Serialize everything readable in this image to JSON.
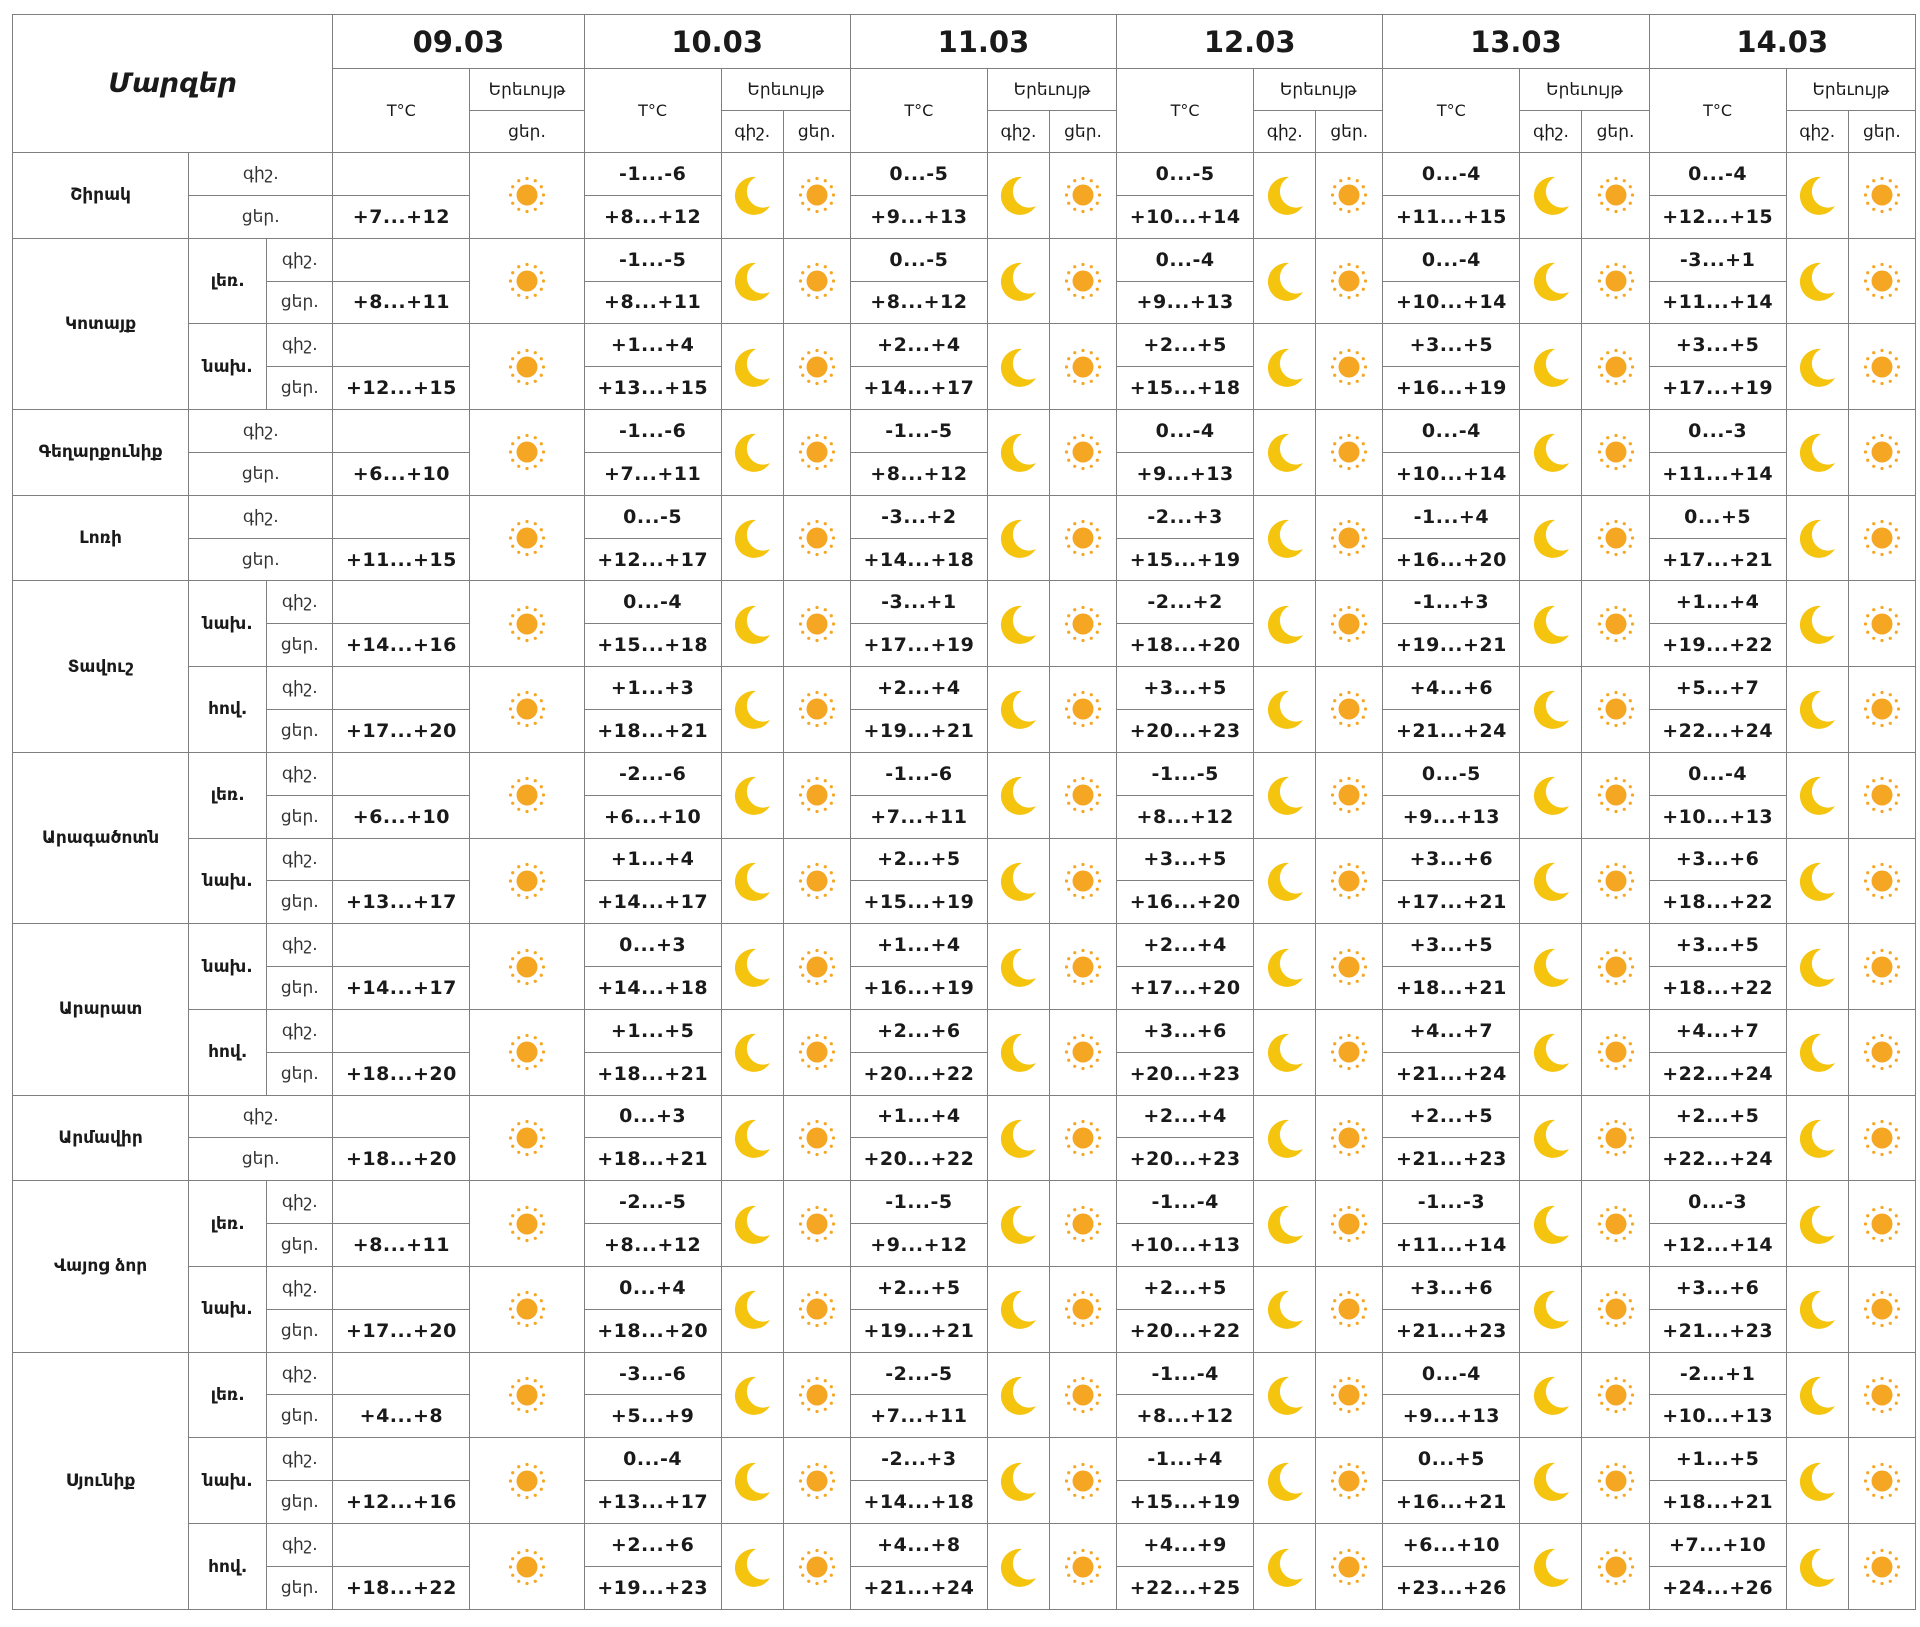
{
  "header": {
    "title": "Մարզեր",
    "temp_label": "T°C",
    "phenomenon_label": "Երեւույթ",
    "night_label": "գիշ.",
    "day_label": "ցեր.",
    "dates": [
      "09.03",
      "10.03",
      "11.03",
      "12.03",
      "13.03",
      "14.03"
    ]
  },
  "icons": {
    "night": "moon-icon",
    "day": "sun-icon",
    "moon_color": "#f5c40f",
    "sun_color": "#f5a623"
  },
  "regions": [
    {
      "name": "Շիրակ",
      "subs": [
        {
          "name": "",
          "night": [
            "",
            "-1...-6",
            "0...-5",
            "0...-5",
            "0...-4",
            "0...-4"
          ],
          "day": [
            "+7...+12",
            "+8...+12",
            "+9...+13",
            "+10...+14",
            "+11...+15",
            "+12...+15"
          ]
        }
      ]
    },
    {
      "name": "Կոտայք",
      "subs": [
        {
          "name": "լեռ.",
          "night": [
            "",
            "-1...-5",
            "0...-5",
            "0...-4",
            "0...-4",
            "-3...+1"
          ],
          "day": [
            "+8...+11",
            "+8...+11",
            "+8...+12",
            "+9...+13",
            "+10...+14",
            "+11...+14"
          ]
        },
        {
          "name": "նախ.",
          "night": [
            "",
            "+1...+4",
            "+2...+4",
            "+2...+5",
            "+3...+5",
            "+3...+5"
          ],
          "day": [
            "+12...+15",
            "+13...+15",
            "+14...+17",
            "+15...+18",
            "+16...+19",
            "+17...+19"
          ]
        }
      ]
    },
    {
      "name": "Գեղարքունիք",
      "subs": [
        {
          "name": "",
          "night": [
            "",
            "-1...-6",
            "-1...-5",
            "0...-4",
            "0...-4",
            "0...-3"
          ],
          "day": [
            "+6...+10",
            "+7...+11",
            "+8...+12",
            "+9...+13",
            "+10...+14",
            "+11...+14"
          ]
        }
      ]
    },
    {
      "name": "Լոռի",
      "subs": [
        {
          "name": "",
          "night": [
            "",
            "0...-5",
            "-3...+2",
            "-2...+3",
            "-1...+4",
            "0...+5"
          ],
          "day": [
            "+11...+15",
            "+12...+17",
            "+14...+18",
            "+15...+19",
            "+16...+20",
            "+17...+21"
          ]
        }
      ]
    },
    {
      "name": "Տավուշ",
      "subs": [
        {
          "name": "նախ.",
          "night": [
            "",
            "0...-4",
            "-3...+1",
            "-2...+2",
            "-1...+3",
            "+1...+4"
          ],
          "day": [
            "+14...+16",
            "+15...+18",
            "+17...+19",
            "+18...+20",
            "+19...+21",
            "+19...+22"
          ]
        },
        {
          "name": "հով.",
          "night": [
            "",
            "+1...+3",
            "+2...+4",
            "+3...+5",
            "+4...+6",
            "+5...+7"
          ],
          "day": [
            "+17...+20",
            "+18...+21",
            "+19...+21",
            "+20...+23",
            "+21...+24",
            "+22...+24"
          ]
        }
      ]
    },
    {
      "name": "Արագածոտն",
      "subs": [
        {
          "name": "լեռ.",
          "night": [
            "",
            "-2...-6",
            "-1...-6",
            "-1...-5",
            "0...-5",
            "0...-4"
          ],
          "day": [
            "+6...+10",
            "+6...+10",
            "+7...+11",
            "+8...+12",
            "+9...+13",
            "+10...+13"
          ]
        },
        {
          "name": "նախ.",
          "night": [
            "",
            "+1...+4",
            "+2...+5",
            "+3...+5",
            "+3...+6",
            "+3...+6"
          ],
          "day": [
            "+13...+17",
            "+14...+17",
            "+15...+19",
            "+16...+20",
            "+17...+21",
            "+18...+22"
          ]
        }
      ]
    },
    {
      "name": "Արարատ",
      "subs": [
        {
          "name": "նախ.",
          "night": [
            "",
            "0...+3",
            "+1...+4",
            "+2...+4",
            "+3...+5",
            "+3...+5"
          ],
          "day": [
            "+14...+17",
            "+14...+18",
            "+16...+19",
            "+17...+20",
            "+18...+21",
            "+18...+22"
          ]
        },
        {
          "name": "հով.",
          "night": [
            "",
            "+1...+5",
            "+2...+6",
            "+3...+6",
            "+4...+7",
            "+4...+7"
          ],
          "day": [
            "+18...+20",
            "+18...+21",
            "+20...+22",
            "+20...+23",
            "+21...+24",
            "+22...+24"
          ]
        }
      ]
    },
    {
      "name": "Արմավիր",
      "subs": [
        {
          "name": "",
          "night": [
            "",
            "0...+3",
            "+1...+4",
            "+2...+4",
            "+2...+5",
            "+2...+5"
          ],
          "day": [
            "+18...+20",
            "+18...+21",
            "+20...+22",
            "+20...+23",
            "+21...+23",
            "+22...+24"
          ]
        }
      ]
    },
    {
      "name": "Վայոց ձոր",
      "subs": [
        {
          "name": "լեռ.",
          "night": [
            "",
            "-2...-5",
            "-1...-5",
            "-1...-4",
            "-1...-3",
            "0...-3"
          ],
          "day": [
            "+8...+11",
            "+8...+12",
            "+9...+12",
            "+10...+13",
            "+11...+14",
            "+12...+14"
          ]
        },
        {
          "name": "նախ.",
          "night": [
            "",
            "0...+4",
            "+2...+5",
            "+2...+5",
            "+3...+6",
            "+3...+6"
          ],
          "day": [
            "+17...+20",
            "+18...+20",
            "+19...+21",
            "+20...+22",
            "+21...+23",
            "+21...+23"
          ]
        }
      ]
    },
    {
      "name": "Սյունիք",
      "subs": [
        {
          "name": "լեռ.",
          "night": [
            "",
            "-3...-6",
            "-2...-5",
            "-1...-4",
            "0...-4",
            "-2...+1"
          ],
          "day": [
            "+4...+8",
            "+5...+9",
            "+7...+11",
            "+8...+12",
            "+9...+13",
            "+10...+13"
          ]
        },
        {
          "name": "նախ.",
          "night": [
            "",
            "0...-4",
            "-2...+3",
            "-1...+4",
            "0...+5",
            "+1...+5"
          ],
          "day": [
            "+12...+16",
            "+13...+17",
            "+14...+18",
            "+15...+19",
            "+16...+21",
            "+18...+21"
          ]
        },
        {
          "name": "հով.",
          "night": [
            "",
            "+2...+6",
            "+4...+8",
            "+4...+9",
            "+6...+10",
            "+7...+10"
          ],
          "day": [
            "+18...+22",
            "+19...+23",
            "+21...+24",
            "+22...+25",
            "+23...+26",
            "+24...+26"
          ]
        }
      ]
    }
  ]
}
